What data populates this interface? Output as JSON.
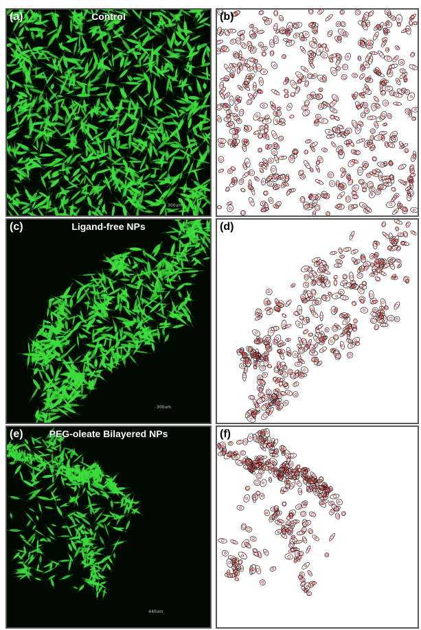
{
  "panels": {
    "a": {
      "letter": "(a)",
      "title": "Control",
      "scale": "300um"
    },
    "b": {
      "letter": "(b)"
    },
    "c": {
      "letter": "(c)",
      "title": "Ligand-free NPs",
      "scale": "300um"
    },
    "d": {
      "letter": "(d)"
    },
    "e": {
      "letter": "(e)",
      "title": "PEG-oleate Bilayered NPs",
      "scale": "440um"
    },
    "f": {
      "letter": "(f)"
    }
  },
  "colors": {
    "cell_green": "#3ddc3d",
    "background_dark": "#000a00",
    "outline_red": "#e03030",
    "outline_black": "#222222"
  }
}
